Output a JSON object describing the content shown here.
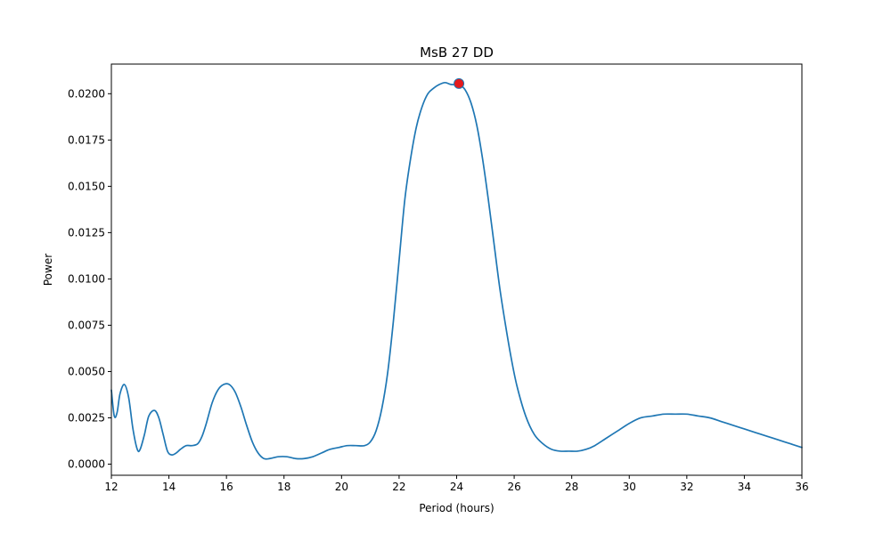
{
  "chart_data": {
    "type": "line",
    "title": "MsB 27 DD",
    "xlabel": "Period (hours)",
    "ylabel": "Power",
    "xlim": [
      12,
      36
    ],
    "ylim": [
      -0.0006,
      0.0216
    ],
    "xticks": [
      "12",
      "14",
      "16",
      "18",
      "20",
      "22",
      "24",
      "26",
      "28",
      "30",
      "32",
      "34",
      "36"
    ],
    "yticks": [
      "0.0000",
      "0.0025",
      "0.0050",
      "0.0075",
      "0.0100",
      "0.0125",
      "0.0150",
      "0.0175",
      "0.0200"
    ],
    "grid": false,
    "series": [
      {
        "color": "#1f77b4",
        "x": [
          12.0,
          12.1,
          12.2,
          12.3,
          12.45,
          12.6,
          12.75,
          12.9,
          13.0,
          13.15,
          13.3,
          13.5,
          13.65,
          13.8,
          13.95,
          14.1,
          14.25,
          14.4,
          14.6,
          14.8,
          15.0,
          15.15,
          15.3,
          15.5,
          15.7,
          15.9,
          16.1,
          16.3,
          16.5,
          16.7,
          16.9,
          17.1,
          17.3,
          17.5,
          17.8,
          18.1,
          18.4,
          18.7,
          19.0,
          19.3,
          19.6,
          19.9,
          20.2,
          20.5,
          20.8,
          21.0,
          21.2,
          21.4,
          21.6,
          21.8,
          22.0,
          22.2,
          22.4,
          22.6,
          22.8,
          23.0,
          23.2,
          23.4,
          23.6,
          23.8,
          24.0,
          24.1,
          24.3,
          24.5,
          24.7,
          24.9,
          25.1,
          25.3,
          25.5,
          25.7,
          25.9,
          26.1,
          26.4,
          26.7,
          27.0,
          27.3,
          27.6,
          27.9,
          28.2,
          28.5,
          28.8,
          29.2,
          29.6,
          30.0,
          30.4,
          30.8,
          31.2,
          31.6,
          32.0,
          32.4,
          32.8,
          33.2,
          33.6,
          34.0,
          34.4,
          34.8,
          35.2,
          35.6,
          36.0
        ],
        "y": [
          0.004,
          0.0026,
          0.0028,
          0.0038,
          0.0043,
          0.0036,
          0.0019,
          0.0008,
          0.0008,
          0.0016,
          0.0026,
          0.0029,
          0.0025,
          0.0016,
          0.0007,
          0.0005,
          0.0006,
          0.0008,
          0.001,
          0.001,
          0.0011,
          0.0015,
          0.0022,
          0.0033,
          0.004,
          0.0043,
          0.0043,
          0.0039,
          0.0031,
          0.0021,
          0.0012,
          0.0006,
          0.0003,
          0.0003,
          0.0004,
          0.0004,
          0.0003,
          0.0003,
          0.0004,
          0.0006,
          0.0008,
          0.0009,
          0.001,
          0.001,
          0.001,
          0.0012,
          0.0018,
          0.003,
          0.0049,
          0.0077,
          0.011,
          0.0143,
          0.0165,
          0.0182,
          0.0193,
          0.02,
          0.0203,
          0.0205,
          0.0206,
          0.0205,
          0.0205,
          0.0205,
          0.0202,
          0.0195,
          0.0183,
          0.0165,
          0.0143,
          0.0119,
          0.0095,
          0.0075,
          0.0057,
          0.0042,
          0.0026,
          0.0016,
          0.0011,
          0.0008,
          0.0007,
          0.0007,
          0.0007,
          0.0008,
          0.001,
          0.0014,
          0.0018,
          0.0022,
          0.0025,
          0.0026,
          0.0027,
          0.0027,
          0.0027,
          0.0026,
          0.0025,
          0.0023,
          0.0021,
          0.0019,
          0.0017,
          0.0015,
          0.0013,
          0.0011,
          0.0009
        ]
      }
    ],
    "peak": {
      "x": 24.08,
      "y": 0.02055,
      "color": "#e41a1c"
    }
  }
}
